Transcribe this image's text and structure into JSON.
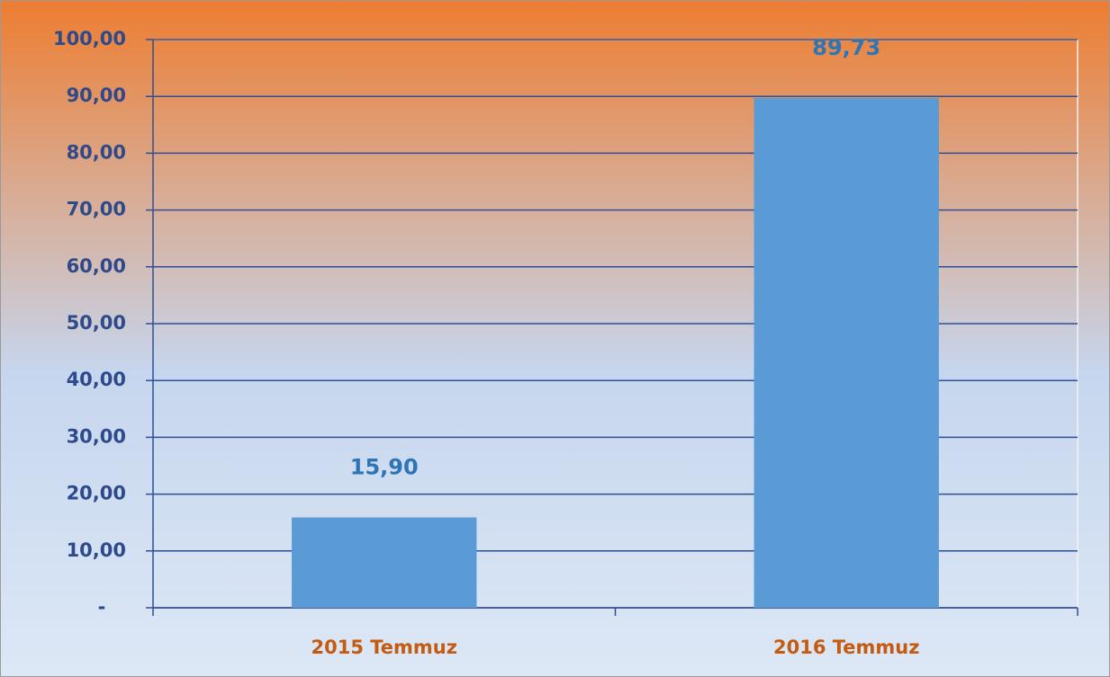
{
  "chart_data": {
    "type": "bar",
    "categories": [
      "2015 Temmuz",
      "2016 Temmuz"
    ],
    "values": [
      15.9,
      89.73
    ],
    "value_labels": [
      "15,90",
      "89,73"
    ],
    "color": "#5b9bd5",
    "ylim": [
      0,
      100
    ],
    "yticks": [
      {
        "value": 0,
        "label": "-"
      },
      {
        "value": 10,
        "label": "10,00"
      },
      {
        "value": 20,
        "label": "20,00"
      },
      {
        "value": 30,
        "label": "30,00"
      },
      {
        "value": 40,
        "label": "40,00"
      },
      {
        "value": 50,
        "label": "50,00"
      },
      {
        "value": 60,
        "label": "60,00"
      },
      {
        "value": 70,
        "label": "70,00"
      },
      {
        "value": 80,
        "label": "80,00"
      },
      {
        "value": 90,
        "label": "90,00"
      },
      {
        "value": 100,
        "label": "100,00"
      }
    ],
    "grid": true
  }
}
